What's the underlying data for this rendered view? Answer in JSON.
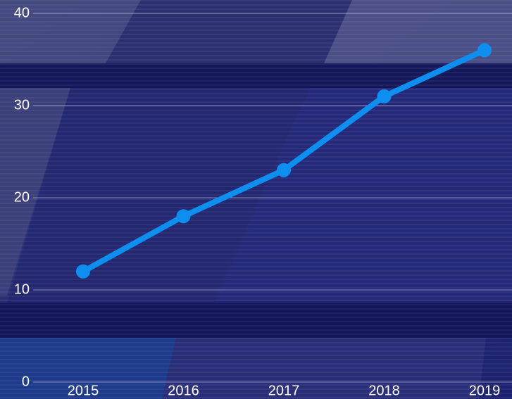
{
  "chart_data": {
    "type": "line",
    "categories": [
      "2015",
      "2016",
      "2017",
      "2018",
      "2019"
    ],
    "series": [
      {
        "color": "#0d8ff0",
        "values": [
          12,
          18,
          23,
          31,
          36
        ]
      }
    ],
    "ylim": [
      0,
      40
    ],
    "yticks": [
      0,
      10,
      20,
      30,
      40
    ],
    "grid": true
  }
}
